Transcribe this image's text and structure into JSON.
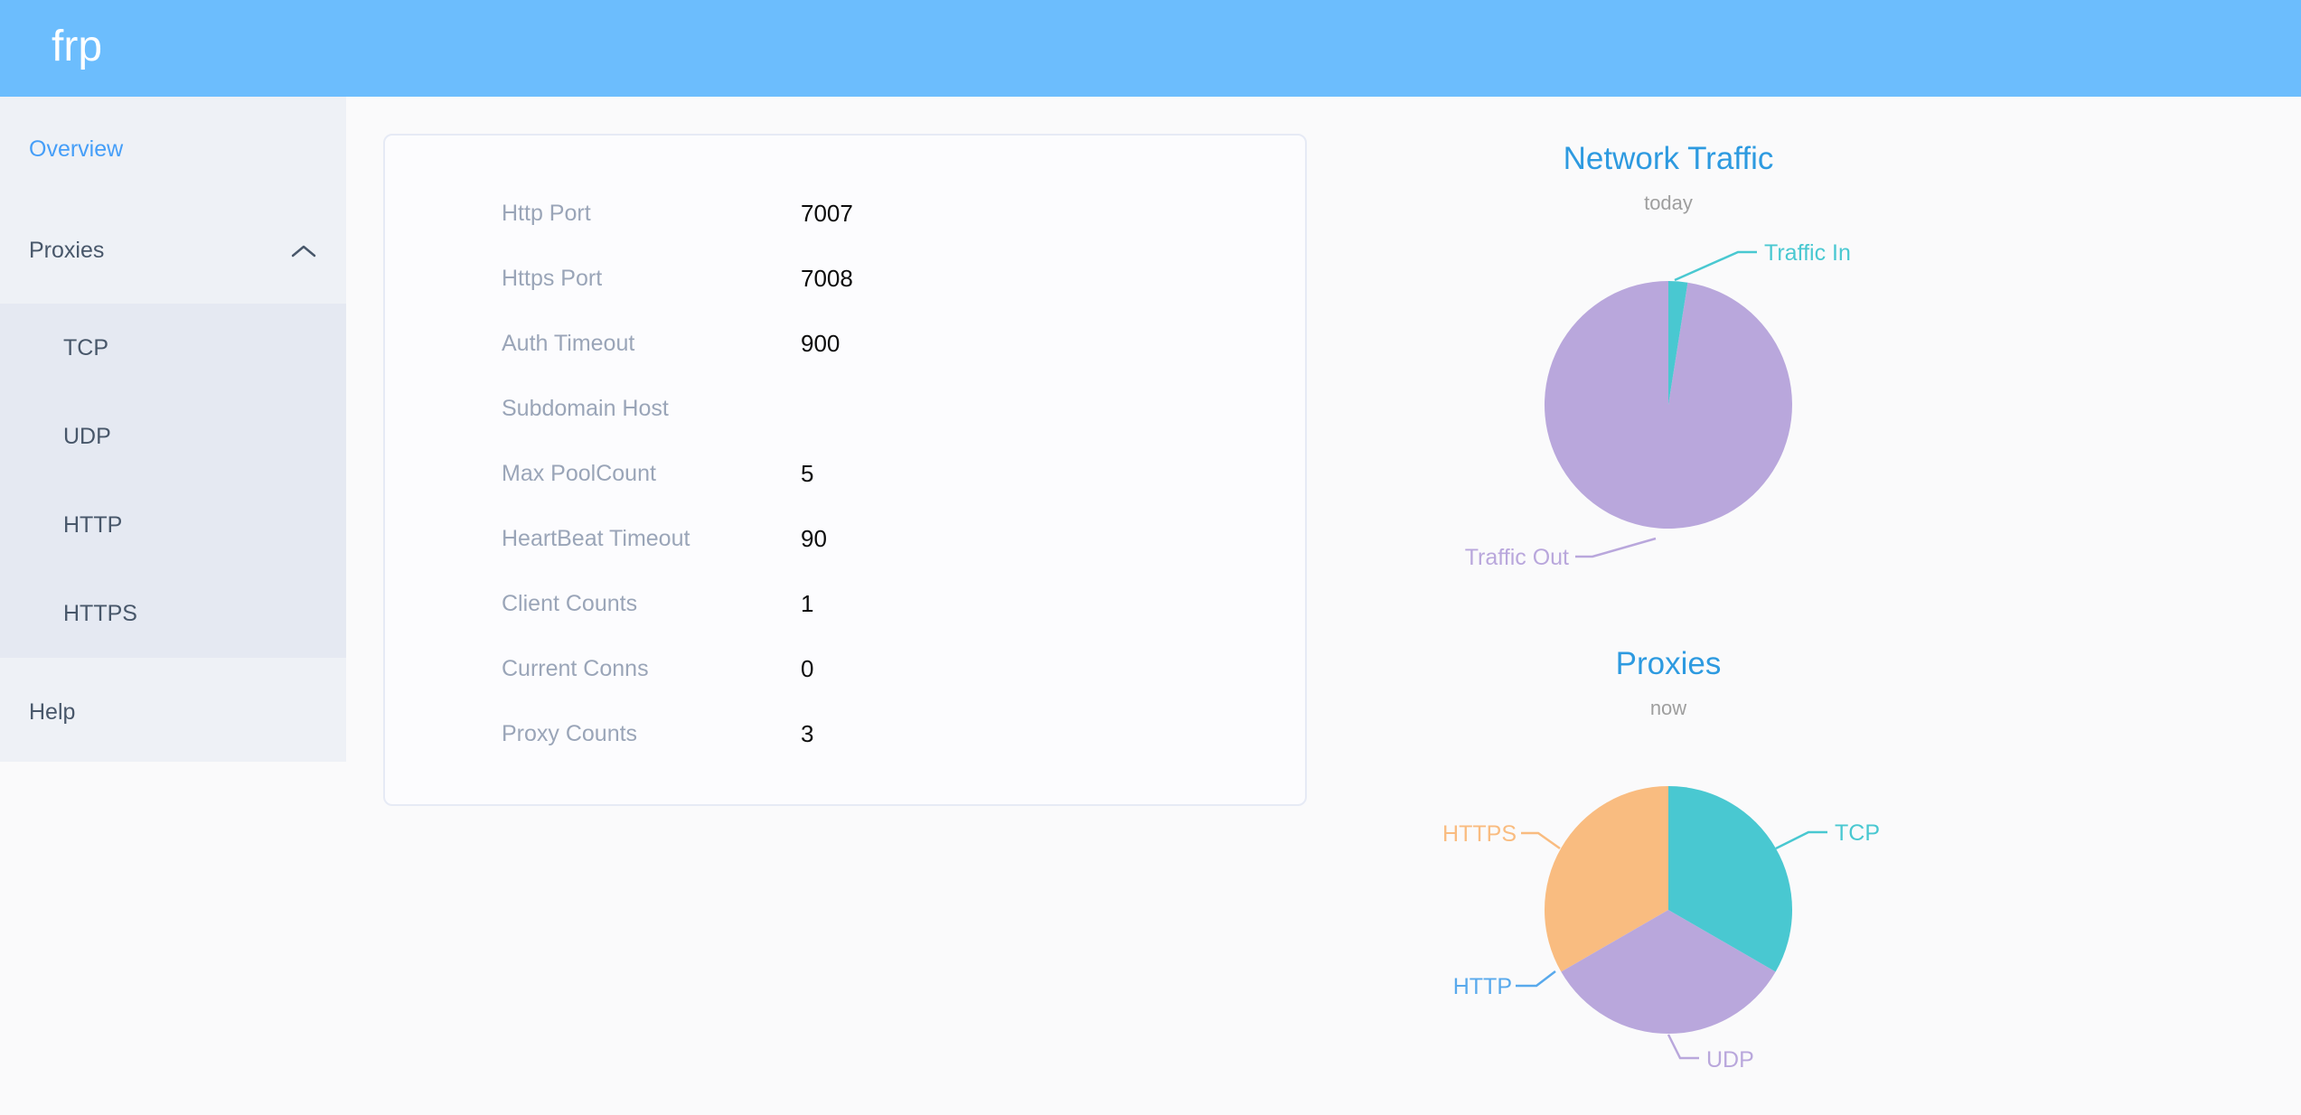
{
  "header": {
    "logo": "frp",
    "background_color": "#6cbdfd"
  },
  "sidebar": {
    "items": [
      {
        "label": "Overview",
        "active": true
      },
      {
        "label": "Proxies",
        "expanded": true,
        "children": [
          "TCP",
          "UDP",
          "HTTP",
          "HTTPS"
        ]
      },
      {
        "label": "Help"
      }
    ]
  },
  "overview_card": {
    "rows": [
      {
        "label": "Http Port",
        "value": "7007"
      },
      {
        "label": "Https Port",
        "value": "7008"
      },
      {
        "label": "Auth Timeout",
        "value": "900"
      },
      {
        "label": "Subdomain Host",
        "value": ""
      },
      {
        "label": "Max PoolCount",
        "value": "5"
      },
      {
        "label": "HeartBeat Timeout",
        "value": "90"
      },
      {
        "label": "Client Counts",
        "value": "1"
      },
      {
        "label": "Current Conns",
        "value": "0"
      },
      {
        "label": "Proxy Counts",
        "value": "3"
      }
    ]
  },
  "chart_data": [
    {
      "type": "pie",
      "title": "Network Traffic",
      "subtitle": "today",
      "legend_position": "callout-labels",
      "series": [
        {
          "name": "Traffic In",
          "value": 2.5,
          "value_is_estimated_pct": true,
          "color": "#49c8d1"
        },
        {
          "name": "Traffic Out",
          "value": 97.5,
          "value_is_estimated_pct": true,
          "color": "#b9a7dc"
        }
      ]
    },
    {
      "type": "pie",
      "title": "Proxies",
      "subtitle": "now",
      "legend_position": "callout-labels",
      "series": [
        {
          "name": "TCP",
          "value": 1,
          "color": "#49c8d1"
        },
        {
          "name": "UDP",
          "value": 1,
          "color": "#b9a7dc"
        },
        {
          "name": "HTTP",
          "value": 0,
          "color": "#58a9ec"
        },
        {
          "name": "HTTPS",
          "value": 1,
          "color": "#f9bc80"
        }
      ]
    }
  ],
  "colors": {
    "header_blue": "#6cbdfd",
    "active_menu_blue": "#459ef8",
    "menu_text": "#48576a",
    "sidebar_bg": "#eef1f6",
    "submenu_bg": "#e5e9f2",
    "chart_title_blue": "#2d9ae0",
    "subtitle_gray": "#9e9e9e",
    "pie_teal": "#49c8d1",
    "pie_purple": "#b9a7dc",
    "pie_orange": "#f9bc80",
    "http_label_blue": "#58a9ec"
  }
}
